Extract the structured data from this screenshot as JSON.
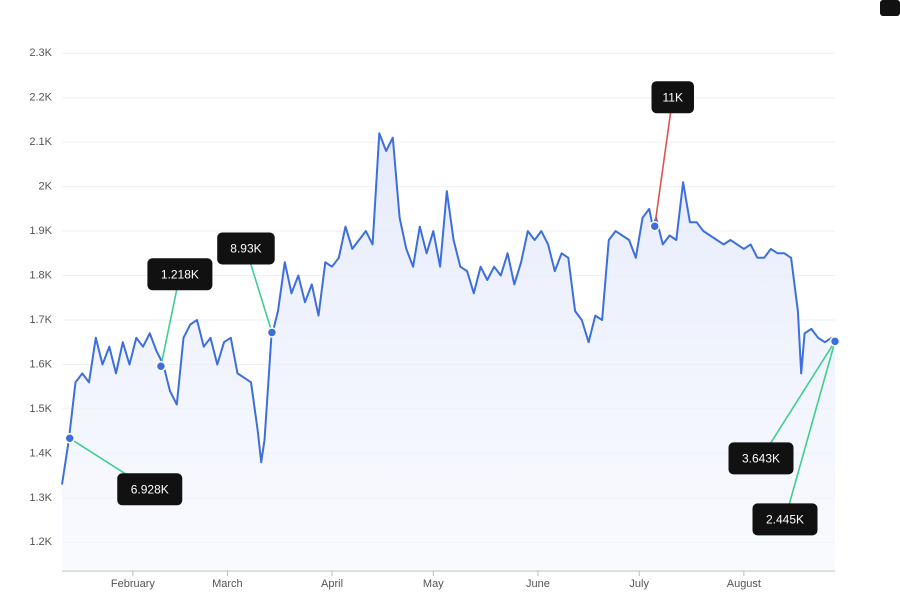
{
  "chart_data": {
    "type": "line",
    "x": [
      11,
      13,
      15,
      17,
      19,
      21,
      23,
      25,
      27,
      29,
      31,
      33,
      35,
      37,
      39,
      41,
      43,
      45,
      47,
      49,
      51,
      53,
      55,
      57,
      59,
      61,
      63,
      65,
      67,
      69,
      70,
      71,
      73,
      75,
      77,
      79,
      81,
      83,
      85,
      87,
      89,
      91,
      93,
      95,
      97,
      99,
      101,
      103,
      105,
      107,
      109,
      111,
      113,
      115,
      117,
      119,
      121,
      123,
      125,
      127,
      129,
      131,
      133,
      135,
      137,
      139,
      141,
      143,
      145,
      147,
      149,
      151,
      153,
      155,
      157,
      159,
      161,
      163,
      165,
      167,
      169,
      171,
      173,
      175,
      177,
      179,
      181,
      183,
      185,
      186,
      187,
      189,
      191,
      193,
      195,
      197,
      199,
      201,
      203,
      205,
      207,
      209,
      211,
      213,
      215,
      217,
      219,
      221,
      223,
      225,
      227,
      229,
      230,
      231,
      233,
      235,
      237,
      239,
      240
    ],
    "values": [
      1330,
      1430,
      1560,
      1580,
      1560,
      1660,
      1600,
      1640,
      1580,
      1650,
      1600,
      1660,
      1640,
      1670,
      1630,
      1600,
      1540,
      1510,
      1660,
      1690,
      1700,
      1640,
      1660,
      1600,
      1650,
      1660,
      1580,
      1570,
      1560,
      1450,
      1380,
      1430,
      1660,
      1720,
      1830,
      1760,
      1800,
      1740,
      1780,
      1710,
      1830,
      1820,
      1840,
      1910,
      1860,
      1880,
      1900,
      1870,
      2120,
      2080,
      2110,
      1930,
      1860,
      1820,
      1910,
      1850,
      1900,
      1820,
      1990,
      1880,
      1820,
      1810,
      1760,
      1820,
      1790,
      1820,
      1800,
      1850,
      1780,
      1830,
      1900,
      1880,
      1900,
      1870,
      1810,
      1850,
      1840,
      1720,
      1700,
      1650,
      1710,
      1700,
      1880,
      1900,
      1890,
      1880,
      1840,
      1930,
      1950,
      1910,
      1930,
      1870,
      1890,
      1880,
      2010,
      1920,
      1920,
      1900,
      1890,
      1880,
      1870,
      1880,
      1870,
      1860,
      1870,
      1840,
      1840,
      1860,
      1850,
      1850,
      1840,
      1720,
      1580,
      1670,
      1680,
      1660,
      1650,
      1660,
      1655
    ],
    "color": "#3d6fdc",
    "xlim": [
      11,
      240
    ],
    "xticks": [
      {
        "value": 32,
        "label": "February"
      },
      {
        "value": 60,
        "label": "March"
      },
      {
        "value": 91,
        "label": "April"
      },
      {
        "value": 121,
        "label": "May"
      },
      {
        "value": 152,
        "label": "June"
      },
      {
        "value": 182,
        "label": "July"
      },
      {
        "value": 213,
        "label": "August"
      }
    ],
    "ylim": [
      1140,
      2350
    ],
    "yticks": [
      {
        "value": 1200,
        "label": "1.2K"
      },
      {
        "value": 1300,
        "label": "1.3K"
      },
      {
        "value": 1400,
        "label": "1.4K"
      },
      {
        "value": 1500,
        "label": "1.5K"
      },
      {
        "value": 1600,
        "label": "1.6K"
      },
      {
        "value": 1700,
        "label": "1.7K"
      },
      {
        "value": 1800,
        "label": "1.8K"
      },
      {
        "value": 1900,
        "label": "1.9K"
      },
      {
        "value": 2000,
        "label": "2K"
      },
      {
        "value": 2100,
        "label": "2.1K"
      },
      {
        "value": 2200,
        "label": "2.2K"
      },
      {
        "value": 2300,
        "label": "2.3K"
      }
    ],
    "grid": true,
    "annotations": [
      {
        "x": 13.3,
        "y": 1434,
        "label": "6.928K",
        "color": "#3ecf8e"
      },
      {
        "x": 40.3,
        "y": 1596,
        "label": "1.218K",
        "color": "#3ecf8e"
      },
      {
        "x": 73.2,
        "y": 1672,
        "label": "8.93K",
        "color": "#3ecf8e"
      },
      {
        "x": 186.6,
        "y": 1911,
        "label": "11K",
        "color": "#e05252"
      },
      {
        "x": 240,
        "y": 1652,
        "label": "3.643K",
        "color": "#3ecf8e"
      },
      {
        "x": 240,
        "y": 1652,
        "label": "2.445K",
        "color": "#3ecf8e"
      }
    ]
  }
}
